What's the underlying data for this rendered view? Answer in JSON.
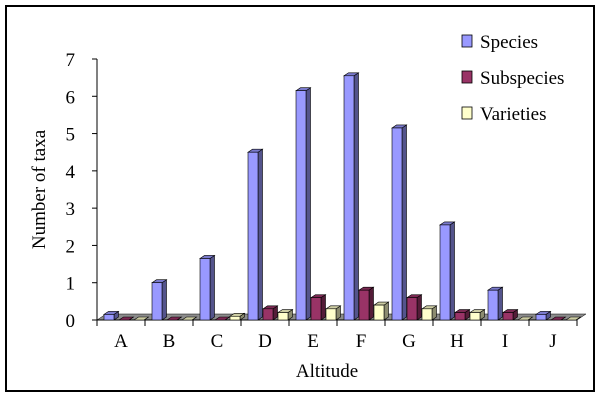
{
  "chart_data": {
    "type": "bar",
    "title": "",
    "xlabel": "Altitude",
    "ylabel": "Number of taxa",
    "ylim": [
      0,
      7
    ],
    "yticks": [
      "0",
      "1",
      "2",
      "3",
      "4",
      "5",
      "6",
      "7"
    ],
    "categories": [
      "A",
      "B",
      "C",
      "D",
      "E",
      "F",
      "G",
      "H",
      "I",
      "J"
    ],
    "series": [
      {
        "name": "Species",
        "color": "#9999ff",
        "values": [
          0.15,
          1.0,
          1.65,
          4.5,
          6.15,
          6.55,
          5.15,
          2.55,
          0.8,
          0.15
        ]
      },
      {
        "name": "Subspecies",
        "color": "#993366",
        "values": [
          0.0,
          0.0,
          0.0,
          0.3,
          0.6,
          0.8,
          0.6,
          0.2,
          0.2,
          0.0
        ]
      },
      {
        "name": "Varieties",
        "color": "#ffffcc",
        "values": [
          0.0,
          0.0,
          0.1,
          0.2,
          0.3,
          0.4,
          0.3,
          0.2,
          0.0,
          0.0
        ]
      }
    ],
    "legend_position": "top-right",
    "grid": false
  }
}
